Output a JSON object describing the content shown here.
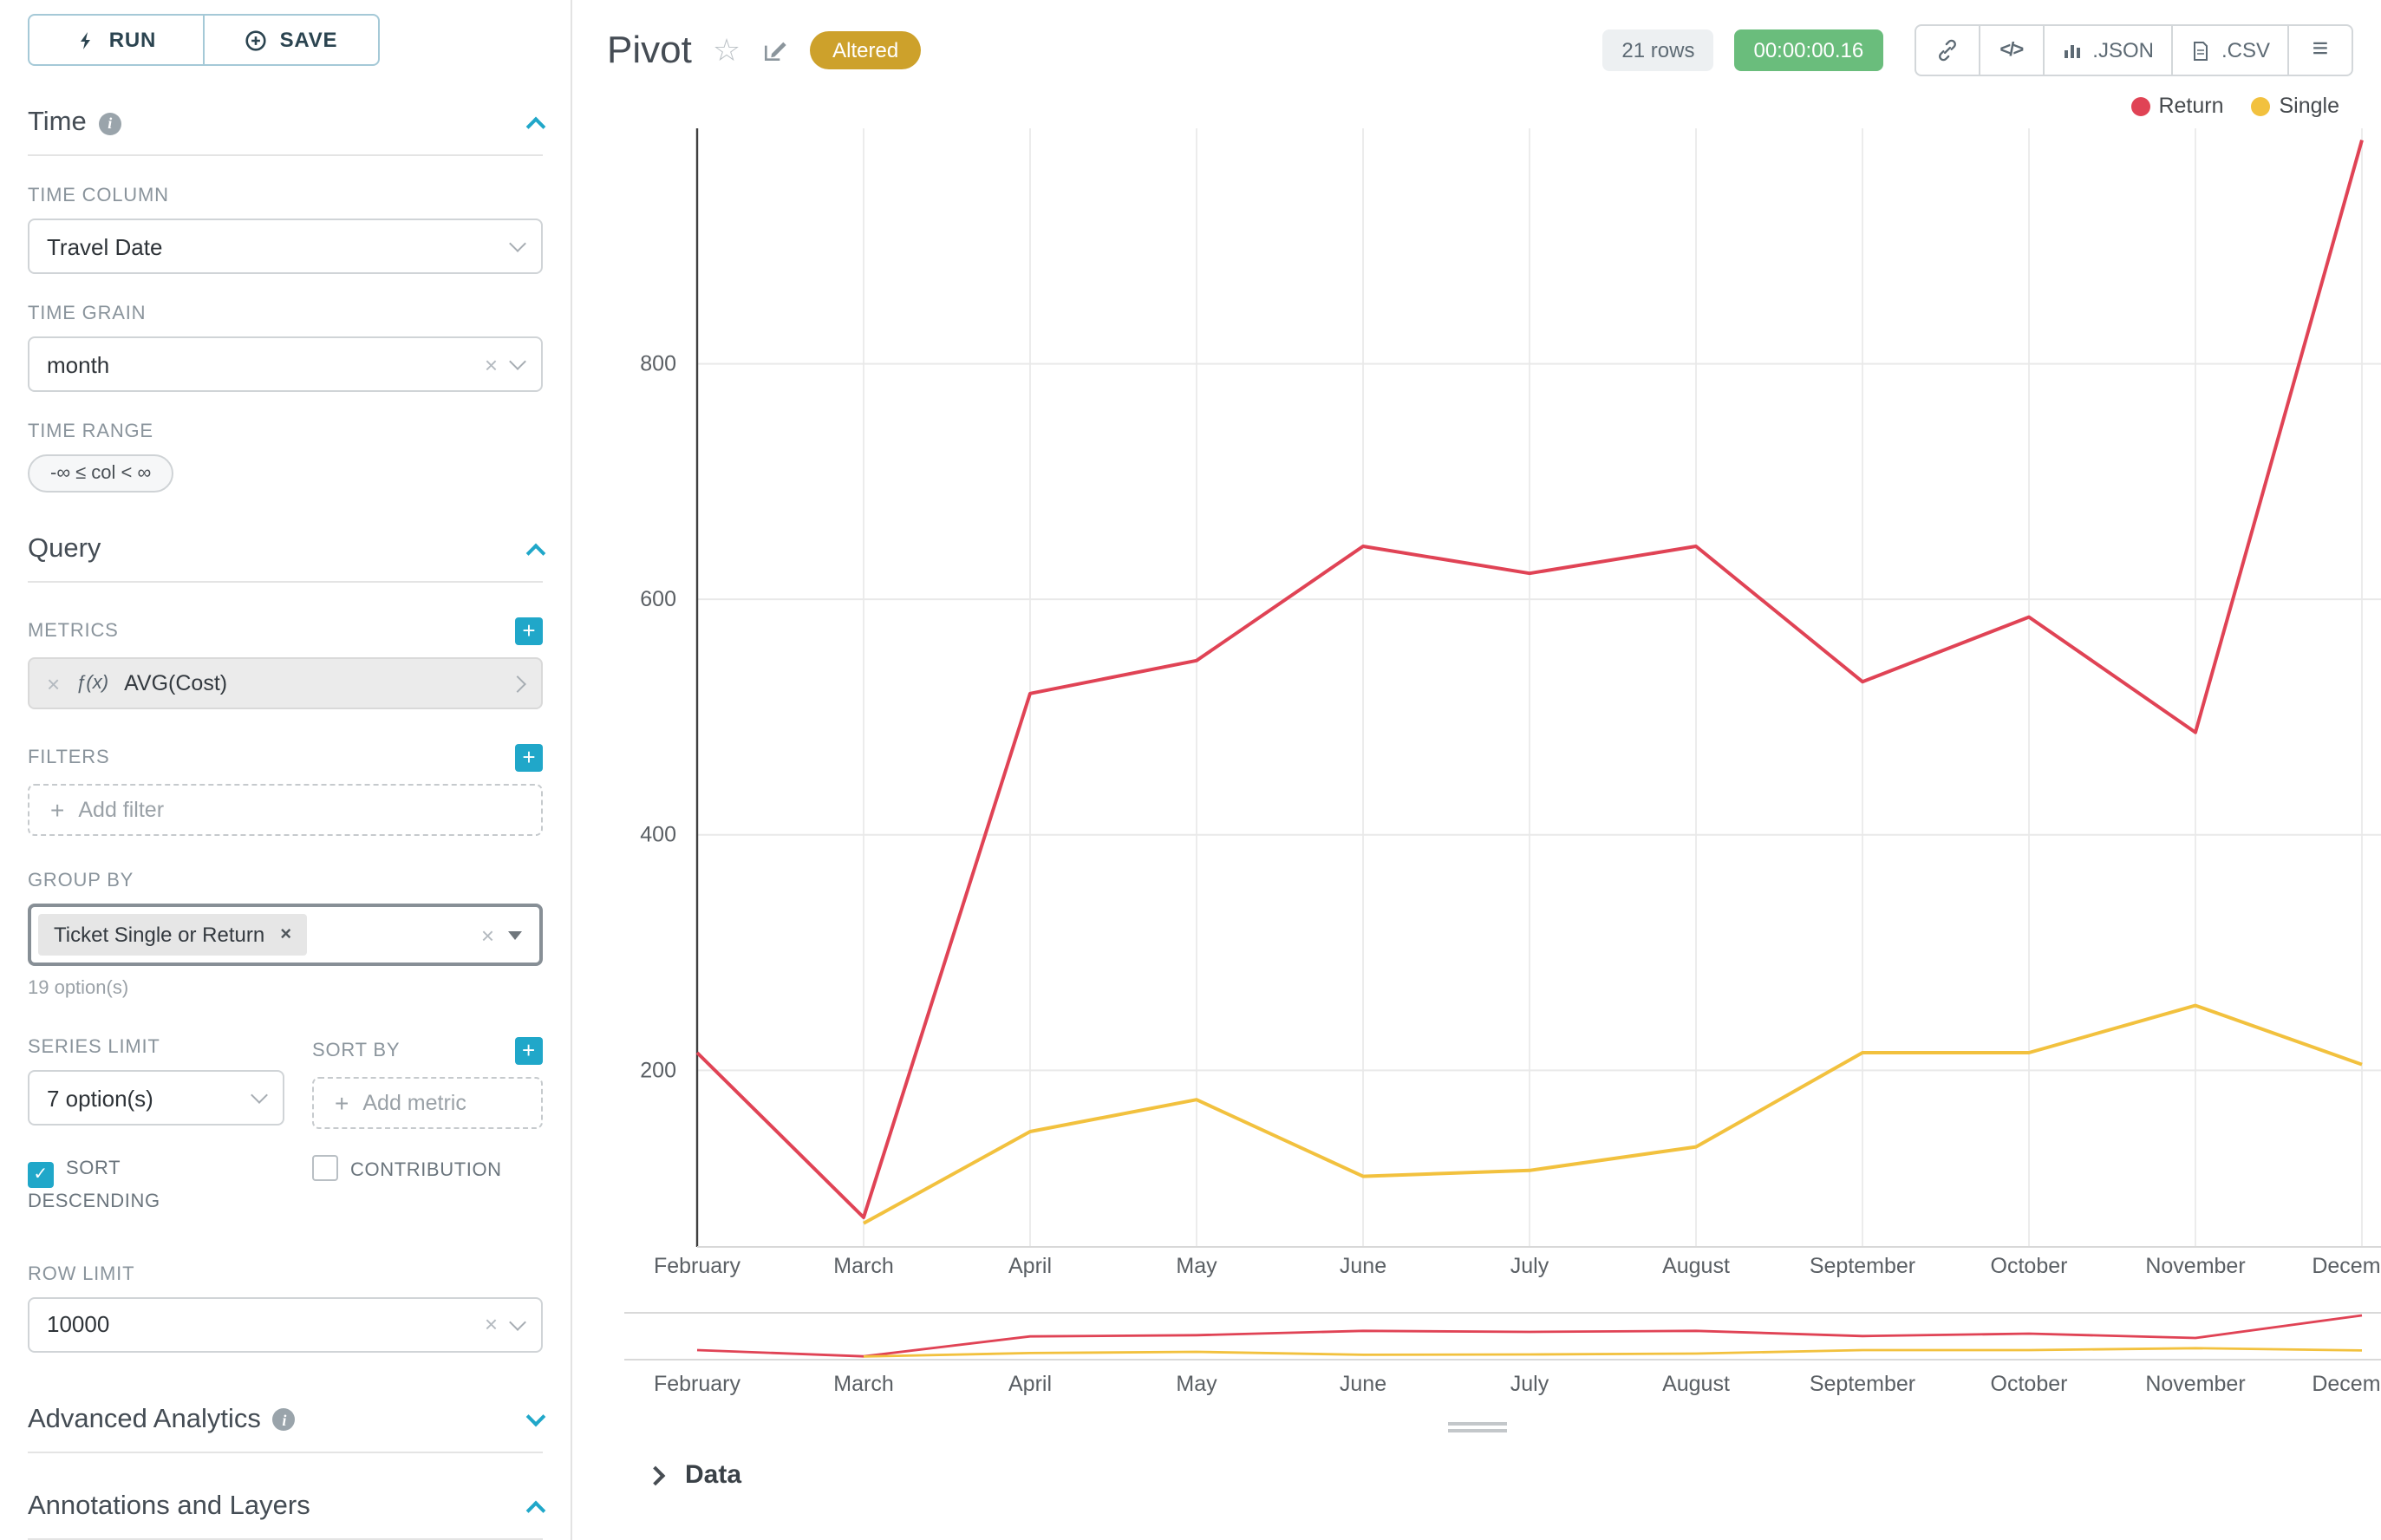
{
  "colors": {
    "accent": "#20a7c9",
    "altered_badge_bg": "#cda12b",
    "timer_bg": "#6abd7c",
    "return_red": "#E04355",
    "single_yellow": "#F2C13E"
  },
  "icons": {
    "check": "✓",
    "plus": "+",
    "clear": "×",
    "info": "i",
    "star": "☆",
    "code": "</>",
    "menu": "≡"
  },
  "sidebar": {
    "run_label": "RUN",
    "save_label": "SAVE",
    "time": {
      "section_title": "Time",
      "time_column_label": "TIME COLUMN",
      "time_column_value": "Travel Date",
      "time_grain_label": "TIME GRAIN",
      "time_grain_value": "month",
      "time_range_label": "TIME RANGE",
      "time_range_value": "-∞ ≤ col < ∞"
    },
    "query": {
      "section_title": "Query",
      "metrics_label": "METRICS",
      "metric_fx": "ƒ(x)",
      "metric_name": "AVG(Cost)",
      "filters_label": "FILTERS",
      "add_filter_label": "Add filter",
      "group_by_label": "GROUP BY",
      "group_by_tag": "Ticket Single or Return",
      "group_by_hint": "19 option(s)",
      "series_limit_label": "SERIES LIMIT",
      "series_limit_value": "7 option(s)",
      "sort_by_label": "SORT BY",
      "add_metric_label": "Add metric",
      "sort_descending_label": "SORT DESCENDING",
      "contribution_label": "CONTRIBUTION",
      "row_limit_label": "ROW LIMIT",
      "row_limit_value": "10000"
    },
    "advanced_analytics_title": "Advanced Analytics",
    "annotations_title": "Annotations and Layers"
  },
  "header": {
    "title": "Pivot",
    "altered_badge": "Altered",
    "rows_badge": "21 rows",
    "timer": "00:00:00.16",
    "json_label": ".JSON",
    "csv_label": ".CSV"
  },
  "chart_data": {
    "type": "line",
    "x": [
      "February",
      "March",
      "April",
      "May",
      "June",
      "July",
      "August",
      "September",
      "October",
      "November",
      "December"
    ],
    "series": [
      {
        "name": "Return",
        "color": "#E04355",
        "values": [
          215,
          75,
          520,
          548,
          645,
          622,
          645,
          530,
          585,
          487,
          990
        ]
      },
      {
        "name": "Single",
        "color": "#F2C13E",
        "values": [
          null,
          70,
          148,
          175,
          110,
          115,
          135,
          215,
          215,
          255,
          205
        ]
      }
    ],
    "title": "",
    "xlabel": "",
    "ylabel": "",
    "yticks": [
      200,
      400,
      600,
      800
    ],
    "ylim": [
      50,
      1000
    ],
    "grid": true,
    "legend_position": "top-right",
    "has_mini_brush_chart": true
  },
  "data_panel": {
    "label": "Data"
  }
}
